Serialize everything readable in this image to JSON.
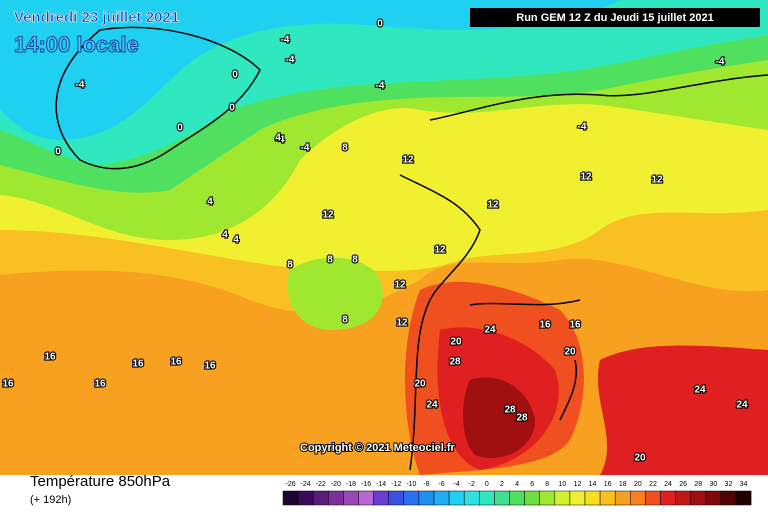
{
  "header": {
    "date": "Vendredi 23 juillet 2021",
    "time": "14:00 locale",
    "run": "Run GEM 12 Z du Jeudi 15 juillet 2021"
  },
  "copyright": "Copyright © 2021 Meteociel.fr",
  "legend": {
    "title": "Température 850hPa",
    "subtitle": "(+ 192h)",
    "ticks": [
      -26,
      -24,
      -22,
      -20,
      -18,
      -16,
      -14,
      -12,
      -10,
      -8,
      -6,
      -4,
      -2,
      0,
      2,
      4,
      6,
      8,
      10,
      12,
      14,
      16,
      18,
      20,
      22,
      24,
      26,
      28,
      30,
      32,
      34
    ],
    "colors": [
      "#1e0530",
      "#3b0a5a",
      "#5a1b7a",
      "#7a2f9a",
      "#9a48b8",
      "#b868d0",
      "#6a3fd0",
      "#3a50e0",
      "#2a70f0",
      "#2090f0",
      "#20b0f0",
      "#20d0f0",
      "#30e0e0",
      "#30e8c0",
      "#40e090",
      "#50e060",
      "#70e040",
      "#a0e830",
      "#d0f030",
      "#f0f030",
      "#f8e020",
      "#f8c020",
      "#f8a020",
      "#f88020",
      "#f05020",
      "#e02020",
      "#c01818",
      "#a01010",
      "#800808",
      "#500404",
      "#200000"
    ]
  },
  "map_labels": [
    0,
    -4,
    -4,
    -4,
    0,
    0,
    0,
    -4,
    -4,
    0,
    -4,
    -4,
    -4,
    4,
    4,
    4,
    4,
    8,
    8,
    8,
    8,
    8,
    12,
    12,
    12,
    12,
    12,
    12,
    12,
    12,
    16,
    16,
    16,
    16,
    16,
    16,
    20,
    24,
    28,
    28,
    24,
    20,
    16,
    16,
    20,
    24,
    24,
    28,
    20
  ]
}
